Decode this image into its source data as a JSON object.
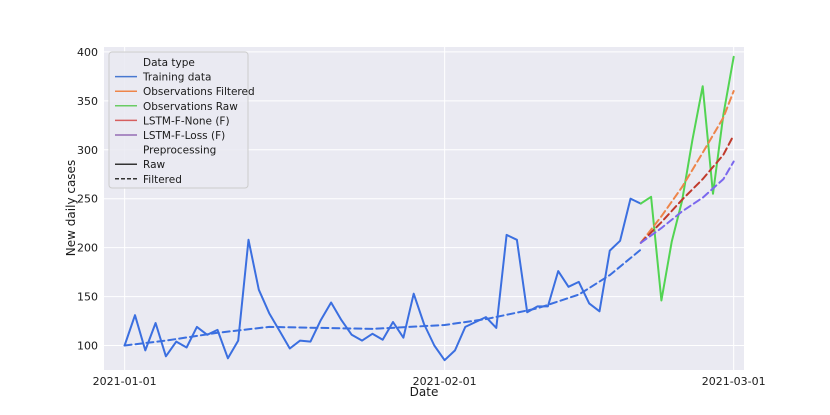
{
  "chart_data": {
    "type": "line",
    "title": "",
    "xlabel": "Date",
    "ylabel": "New daily cases",
    "x_type": "date",
    "xlim": [
      "2020-12-30",
      "2021-03-02"
    ],
    "ylim": [
      75,
      405
    ],
    "x_ticks": [
      {
        "value": "2021-01-01",
        "label": "2021-01-01"
      },
      {
        "value": "2021-02-01",
        "label": "2021-02-01"
      },
      {
        "value": "2021-03-01",
        "label": "2021-03-01"
      }
    ],
    "y_ticks": [
      100,
      150,
      200,
      250,
      300,
      350,
      400
    ],
    "grid": true,
    "background": "#eaeaf2",
    "legend": {
      "placement": "top-left",
      "hue_title": "Data type",
      "style_title": "Preprocessing",
      "hue_entries": [
        {
          "label": "Training data",
          "color": "#4878d0"
        },
        {
          "label": "Observations Filtered",
          "color": "#ee854a"
        },
        {
          "label": "Observations Raw",
          "color": "#6acc64"
        },
        {
          "label": "LSTM-F-None (F)",
          "color": "#d65f5f"
        },
        {
          "label": "LSTM-F-Loss (F)",
          "color": "#956cb4"
        }
      ],
      "style_entries": [
        {
          "label": "Raw",
          "dash": "solid"
        },
        {
          "label": "Filtered",
          "dash": "dashed"
        }
      ]
    },
    "series": [
      {
        "name": "Training data",
        "preprocessing": "Raw",
        "color": "#3b6fe0",
        "dash": "solid",
        "x": [
          "2021-01-01",
          "2021-01-02",
          "2021-01-03",
          "2021-01-04",
          "2021-01-05",
          "2021-01-06",
          "2021-01-07",
          "2021-01-08",
          "2021-01-09",
          "2021-01-10",
          "2021-01-11",
          "2021-01-12",
          "2021-01-13",
          "2021-01-14",
          "2021-01-15",
          "2021-01-16",
          "2021-01-17",
          "2021-01-18",
          "2021-01-19",
          "2021-01-20",
          "2021-01-21",
          "2021-01-22",
          "2021-01-23",
          "2021-01-24",
          "2021-01-25",
          "2021-01-26",
          "2021-01-27",
          "2021-01-28",
          "2021-01-29",
          "2021-01-30",
          "2021-01-31",
          "2021-02-01",
          "2021-02-02",
          "2021-02-03",
          "2021-02-04",
          "2021-02-05",
          "2021-02-06",
          "2021-02-07",
          "2021-02-08",
          "2021-02-09",
          "2021-02-10",
          "2021-02-11",
          "2021-02-12",
          "2021-02-13",
          "2021-02-14",
          "2021-02-15",
          "2021-02-16",
          "2021-02-17",
          "2021-02-18",
          "2021-02-19",
          "2021-02-20"
        ],
        "y": [
          100,
          131,
          95,
          123,
          89,
          104,
          98,
          119,
          111,
          116,
          87,
          105,
          208,
          157,
          133,
          115,
          97,
          105,
          104,
          126,
          144,
          126,
          111,
          105,
          112,
          106,
          124,
          108,
          153,
          122,
          100,
          85,
          95,
          119,
          124,
          129,
          118,
          213,
          208,
          134,
          140,
          140,
          176,
          160,
          165,
          143,
          135,
          197,
          207,
          250,
          245
        ]
      },
      {
        "name": "Training data",
        "preprocessing": "Filtered",
        "color": "#3b6fe0",
        "dash": "dashed",
        "x": [
          "2021-01-01",
          "2021-01-05",
          "2021-01-10",
          "2021-01-15",
          "2021-01-20",
          "2021-01-25",
          "2021-02-01",
          "2021-02-05",
          "2021-02-10",
          "2021-02-14",
          "2021-02-17",
          "2021-02-20"
        ],
        "y": [
          100,
          105,
          113,
          119,
          118,
          117,
          121,
          127,
          138,
          152,
          172,
          198
        ]
      },
      {
        "name": "Observations Raw",
        "preprocessing": "Raw",
        "color": "#52d452",
        "dash": "solid",
        "x": [
          "2021-02-20",
          "2021-02-21",
          "2021-02-22",
          "2021-02-23",
          "2021-02-24",
          "2021-02-25",
          "2021-02-26",
          "2021-02-27",
          "2021-02-28",
          "2021-03-01"
        ],
        "y": [
          245,
          252,
          146,
          206,
          248,
          310,
          365,
          255,
          336,
          395
        ]
      },
      {
        "name": "Observations Filtered",
        "preprocessing": "Filtered",
        "color": "#ee854a",
        "dash": "dashed",
        "x": [
          "2021-02-20",
          "2021-02-22",
          "2021-02-24",
          "2021-02-26",
          "2021-02-28",
          "2021-03-01"
        ],
        "y": [
          205,
          232,
          262,
          297,
          333,
          360
        ]
      },
      {
        "name": "LSTM-F-None (F)",
        "preprocessing": "Filtered",
        "color": "#c0392b",
        "dash": "dashed",
        "x": [
          "2021-02-20",
          "2021-02-22",
          "2021-02-24",
          "2021-02-26",
          "2021-02-28",
          "2021-03-01"
        ],
        "y": [
          205,
          226,
          249,
          270,
          295,
          315
        ]
      },
      {
        "name": "LSTM-F-Loss (F)",
        "preprocessing": "Filtered",
        "color": "#7b68ee",
        "dash": "dashed",
        "x": [
          "2021-02-20",
          "2021-02-22",
          "2021-02-24",
          "2021-02-26",
          "2021-02-28",
          "2021-03-01"
        ],
        "y": [
          205,
          220,
          237,
          251,
          270,
          288
        ]
      }
    ]
  }
}
